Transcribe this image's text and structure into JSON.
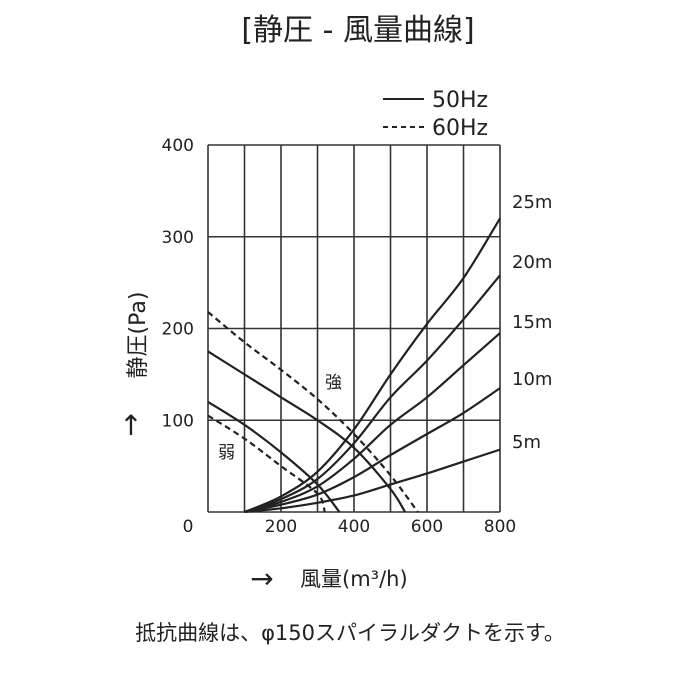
{
  "chart_data": {
    "type": "line",
    "title": "[静圧 - 風量曲線]",
    "xlabel": "風量(m³/h)",
    "ylabel": "静圧(Pa)",
    "xlim": [
      0,
      800
    ],
    "ylim": [
      0,
      400
    ],
    "x_ticks": [
      "0",
      "200",
      "400",
      "600",
      "800"
    ],
    "y_ticks": [
      "100",
      "200",
      "300",
      "400"
    ],
    "grid": true,
    "legend": {
      "position": "top-right",
      "entries": [
        {
          "label": "50Hz",
          "style": "solid"
        },
        {
          "label": "60Hz",
          "style": "dashed"
        }
      ]
    },
    "fan_curves": [
      {
        "label": "強",
        "freq": "50Hz",
        "style": "solid",
        "points": [
          [
            0,
            175
          ],
          [
            100,
            150
          ],
          [
            200,
            125
          ],
          [
            300,
            100
          ],
          [
            400,
            70
          ],
          [
            500,
            25
          ],
          [
            540,
            0
          ]
        ]
      },
      {
        "label": "強",
        "freq": "60Hz",
        "style": "dashed",
        "points": [
          [
            0,
            218
          ],
          [
            100,
            185
          ],
          [
            200,
            155
          ],
          [
            300,
            123
          ],
          [
            400,
            85
          ],
          [
            500,
            40
          ],
          [
            575,
            0
          ]
        ]
      },
      {
        "label": "弱",
        "freq": "50Hz",
        "style": "solid",
        "points": [
          [
            0,
            120
          ],
          [
            100,
            95
          ],
          [
            200,
            65
          ],
          [
            300,
            30
          ],
          [
            360,
            0
          ]
        ]
      },
      {
        "label": "弱",
        "freq": "60Hz",
        "style": "dashed",
        "points": [
          [
            0,
            105
          ],
          [
            100,
            80
          ],
          [
            200,
            50
          ],
          [
            300,
            20
          ],
          [
            320,
            0
          ]
        ]
      }
    ],
    "resistance_curves": [
      {
        "label": "25m",
        "points": [
          [
            100,
            0
          ],
          [
            200,
            17
          ],
          [
            300,
            44
          ],
          [
            400,
            90
          ],
          [
            500,
            150
          ],
          [
            600,
            205
          ],
          [
            700,
            255
          ],
          [
            800,
            320
          ]
        ]
      },
      {
        "label": "20m",
        "points": [
          [
            100,
            0
          ],
          [
            200,
            14
          ],
          [
            300,
            36
          ],
          [
            400,
            75
          ],
          [
            500,
            125
          ],
          [
            600,
            165
          ],
          [
            700,
            210
          ],
          [
            800,
            258
          ]
        ]
      },
      {
        "label": "15m",
        "points": [
          [
            100,
            0
          ],
          [
            200,
            11
          ],
          [
            300,
            28
          ],
          [
            400,
            58
          ],
          [
            500,
            95
          ],
          [
            600,
            125
          ],
          [
            700,
            160
          ],
          [
            800,
            195
          ]
        ]
      },
      {
        "label": "10m",
        "points": [
          [
            100,
            0
          ],
          [
            200,
            8
          ],
          [
            300,
            19
          ],
          [
            400,
            38
          ],
          [
            500,
            62
          ],
          [
            600,
            85
          ],
          [
            700,
            108
          ],
          [
            800,
            135
          ]
        ]
      },
      {
        "label": "5m",
        "points": [
          [
            100,
            0
          ],
          [
            200,
            4
          ],
          [
            300,
            10
          ],
          [
            400,
            18
          ],
          [
            500,
            30
          ],
          [
            600,
            42
          ],
          [
            700,
            55
          ],
          [
            800,
            68
          ]
        ]
      }
    ]
  },
  "arrows": {
    "y": "↑",
    "x": "→"
  },
  "footnote": "抵抗曲線は、φ150スパイラルダクトを示す。"
}
